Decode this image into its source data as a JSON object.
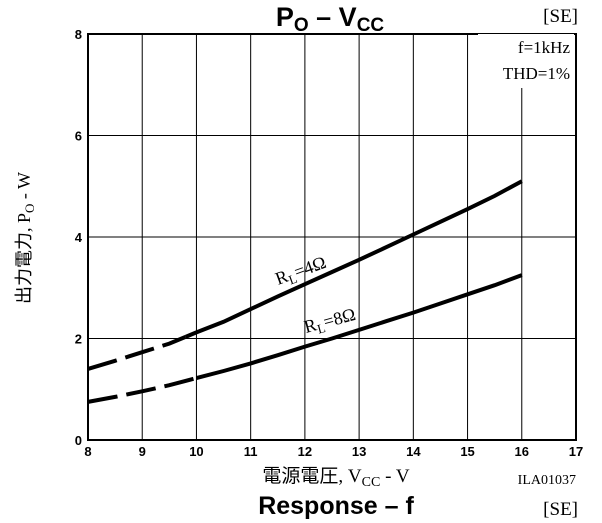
{
  "chart_data": {
    "type": "line",
    "title": "P",
    "title_sub": "O",
    "title_sep": " – ",
    "title_b": "V",
    "title_b_sub": "CC",
    "tag": "[SE]",
    "xlabel": "電源電圧, V",
    "xlabel_sub": "CC",
    "xlabel_unit": " - V",
    "ylabel": "出力電力, P",
    "ylabel_sub": "O",
    "ylabel_unit": " - W",
    "xlim": [
      8,
      17
    ],
    "ylim": [
      0,
      8
    ],
    "x_ticks": [
      8,
      9,
      10,
      11,
      12,
      13,
      14,
      15,
      16,
      17
    ],
    "y_ticks": [
      0,
      2,
      4,
      6,
      8
    ],
    "grid": true,
    "conditions": [
      "f=1kHz",
      "THD=1%"
    ],
    "code": "ILA01037",
    "next_title": "Response",
    "next_title_sep": " – ",
    "next_title_b": "f",
    "next_tag": "[SE]",
    "series": [
      {
        "name": "R",
        "name_sub": "L",
        "name_value": "=4Ω",
        "dashed_until": 9.8,
        "x": [
          8,
          8.5,
          9,
          9.5,
          10,
          10.5,
          11,
          11.5,
          12,
          12.5,
          13,
          13.5,
          14,
          14.5,
          15,
          15.5,
          16
        ],
        "y": [
          1.4,
          1.56,
          1.73,
          1.9,
          2.12,
          2.33,
          2.58,
          2.83,
          3.07,
          3.31,
          3.55,
          3.8,
          4.05,
          4.3,
          4.55,
          4.81,
          5.1
        ]
      },
      {
        "name": "R",
        "name_sub": "L",
        "name_value": "=8Ω",
        "dashed_until": 10.0,
        "x": [
          8,
          8.5,
          9,
          9.5,
          10,
          10.5,
          11,
          11.5,
          12,
          12.5,
          13,
          13.5,
          14,
          14.5,
          15,
          15.5,
          16
        ],
        "y": [
          0.75,
          0.85,
          0.96,
          1.08,
          1.22,
          1.36,
          1.51,
          1.67,
          1.84,
          2.0,
          2.17,
          2.34,
          2.51,
          2.69,
          2.87,
          3.05,
          3.25
        ]
      }
    ]
  }
}
